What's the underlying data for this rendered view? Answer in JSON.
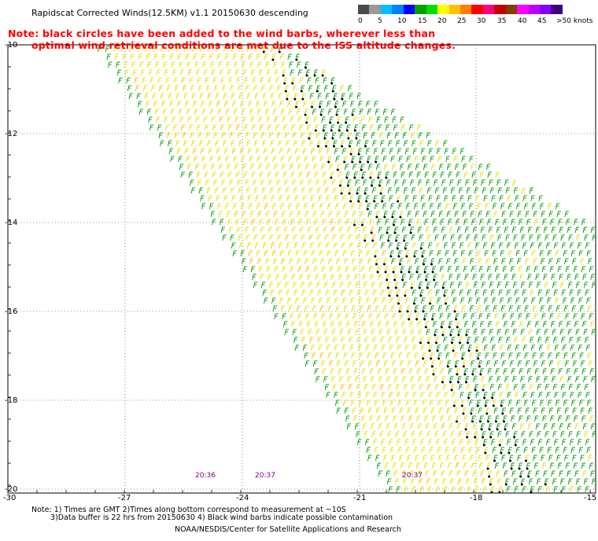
{
  "title": "Rapidscat Corrected Winds(12.5KM) v1.1 20150630 descending",
  "note_line1": "Note: black circles have been added to the wind barbs, wherever less than",
  "note_line2": "optimal wind retrieval conditions are met due to the ISS altitude changes.",
  "colorbar": {
    "labels": [
      "0",
      "5",
      "10",
      "15",
      "20",
      "25",
      "30",
      "35",
      "40",
      "45",
      ">50 knots"
    ],
    "colors": [
      "#4a4a4a",
      "#999999",
      "#00c0ff",
      "#0080ff",
      "#0000ff",
      "#00a000",
      "#00e000",
      "#ffff00",
      "#ffc000",
      "#ff8000",
      "#ff0000",
      "#ff0080",
      "#c00000",
      "#804000",
      "#ff00ff",
      "#c000ff",
      "#8000ff",
      "#400080"
    ]
  },
  "lat_labels": [
    "-10",
    "-12",
    "-14",
    "-16",
    "-18",
    "-20"
  ],
  "lon_labels": [
    "-30",
    "-27",
    "-24",
    "-21",
    "-18",
    "-15"
  ],
  "time_labels": [
    "20:36",
    "20:37",
    "20:37"
  ],
  "footer": {
    "line1": "Note: 1) Times are GMT 2)Times along bottom correspond to measurement at ~10S",
    "line2": "3)Data buffer is 22 hrs from 20150630 4) Black wind barbs indicate possible contamination",
    "line3": "NOAA/NESDIS/Center for Satellite Applications and Research"
  }
}
